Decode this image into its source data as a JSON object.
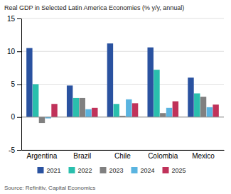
{
  "chart_data": {
    "type": "bar",
    "title": "Real GDP in Selected Latin America Economies (% y/y, annual)",
    "categories": [
      "Argentina",
      "Brazil",
      "Chile",
      "Colombia",
      "Mexico"
    ],
    "series": [
      {
        "name": "2021",
        "color": "#2a52a0",
        "values": [
          10.5,
          4.8,
          11.2,
          10.6,
          6.0
        ]
      },
      {
        "name": "2022",
        "color": "#2abfad",
        "values": [
          5.0,
          2.9,
          2.0,
          7.2,
          3.6
        ]
      },
      {
        "name": "2023",
        "color": "#808080",
        "values": [
          -0.9,
          2.9,
          0.2,
          0.6,
          3.1
        ]
      },
      {
        "name": "2024",
        "color": "#5ab4e0",
        "values": [
          -0.2,
          1.2,
          2.7,
          1.4,
          1.5
        ]
      },
      {
        "name": "2025",
        "color": "#c0325a",
        "values": [
          2.0,
          1.4,
          2.1,
          2.4,
          1.9
        ]
      }
    ],
    "ylim": [
      -5,
      15
    ],
    "yticks": [
      -5,
      0,
      5,
      10,
      15
    ],
    "grid": true,
    "legend": "bottom",
    "source": "Source: Refinitiv, Capital Economics"
  }
}
